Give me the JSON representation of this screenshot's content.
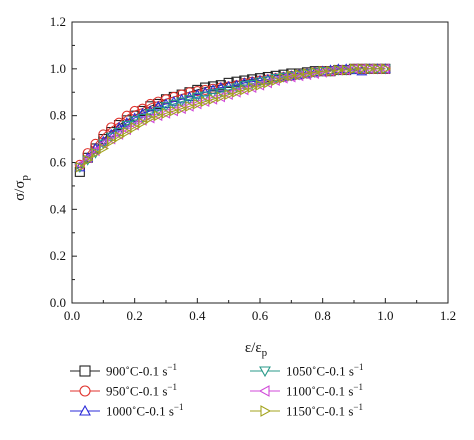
{
  "chart_data": {
    "type": "scatter",
    "title": "",
    "xlabel": "ε/ε",
    "xlabel_sub": "p",
    "ylabel": "σ/σ",
    "ylabel_sub": "p",
    "xlim": [
      0,
      1.2
    ],
    "ylim": [
      0,
      1.2
    ],
    "xticks": [
      "0.0",
      "0.2",
      "0.4",
      "0.6",
      "0.8",
      "1.0",
      "1.2"
    ],
    "yticks": [
      "0.0",
      "0.2",
      "0.4",
      "0.6",
      "0.8",
      "1.0",
      "1.2"
    ],
    "legend_position": "bottom, two columns",
    "series": [
      {
        "name": "900˚C-0.1 s",
        "unit_sup": "−1",
        "marker": "square",
        "color": "#222222",
        "x": [
          0.025,
          0.05,
          0.075,
          0.1,
          0.125,
          0.15,
          0.175,
          0.2,
          0.225,
          0.25,
          0.275,
          0.3,
          0.325,
          0.35,
          0.375,
          0.4,
          0.425,
          0.45,
          0.475,
          0.5,
          0.525,
          0.55,
          0.575,
          0.6,
          0.625,
          0.65,
          0.675,
          0.7,
          0.725,
          0.75,
          0.775,
          0.8,
          0.825,
          0.85,
          0.875,
          0.9,
          0.925,
          0.95,
          0.975,
          1.0
        ],
        "y": [
          0.56,
          0.62,
          0.66,
          0.7,
          0.73,
          0.76,
          0.78,
          0.8,
          0.82,
          0.84,
          0.85,
          0.87,
          0.88,
          0.89,
          0.9,
          0.91,
          0.92,
          0.925,
          0.93,
          0.94,
          0.945,
          0.95,
          0.955,
          0.96,
          0.965,
          0.97,
          0.975,
          0.98,
          0.98,
          0.985,
          0.99,
          0.99,
          0.99,
          0.995,
          0.995,
          1.0,
          1.0,
          1.0,
          1.0,
          1.0
        ]
      },
      {
        "name": "950˚C-0.1 s",
        "unit_sup": "−1",
        "marker": "circle",
        "color": "#e0322c",
        "x": [
          0.025,
          0.05,
          0.075,
          0.1,
          0.125,
          0.15,
          0.175,
          0.2,
          0.225,
          0.25,
          0.275,
          0.3,
          0.325,
          0.35,
          0.375,
          0.4,
          0.425,
          0.45,
          0.475,
          0.5,
          0.525,
          0.55,
          0.575,
          0.6,
          0.625,
          0.65,
          0.675,
          0.7,
          0.725,
          0.75,
          0.775,
          0.8,
          0.825,
          0.85,
          0.875,
          0.9,
          0.925,
          0.95,
          0.975,
          1.0
        ],
        "y": [
          0.59,
          0.64,
          0.68,
          0.72,
          0.75,
          0.77,
          0.8,
          0.82,
          0.83,
          0.85,
          0.86,
          0.87,
          0.88,
          0.89,
          0.9,
          0.905,
          0.91,
          0.915,
          0.92,
          0.925,
          0.93,
          0.94,
          0.945,
          0.95,
          0.955,
          0.96,
          0.965,
          0.97,
          0.975,
          0.98,
          0.985,
          0.99,
          0.99,
          0.995,
          0.995,
          1.0,
          1.0,
          1.0,
          1.0,
          1.0
        ]
      },
      {
        "name": "1000˚C-0.1 s",
        "unit_sup": "−1",
        "marker": "triangle-up",
        "color": "#2b2bd9",
        "x": [
          0.025,
          0.05,
          0.075,
          0.1,
          0.125,
          0.15,
          0.175,
          0.2,
          0.225,
          0.25,
          0.275,
          0.3,
          0.325,
          0.35,
          0.375,
          0.4,
          0.425,
          0.45,
          0.475,
          0.5,
          0.525,
          0.55,
          0.575,
          0.6,
          0.625,
          0.65,
          0.675,
          0.7,
          0.725,
          0.75,
          0.775,
          0.8,
          0.825,
          0.85,
          0.875,
          0.9,
          0.925,
          0.95,
          0.975,
          1.0
        ],
        "y": [
          0.58,
          0.62,
          0.66,
          0.69,
          0.72,
          0.75,
          0.77,
          0.79,
          0.81,
          0.82,
          0.84,
          0.85,
          0.86,
          0.87,
          0.88,
          0.89,
          0.9,
          0.91,
          0.92,
          0.925,
          0.93,
          0.94,
          0.945,
          0.95,
          0.955,
          0.96,
          0.965,
          0.97,
          0.975,
          0.98,
          0.985,
          0.99,
          0.995,
          1.0,
          1.0,
          0.995,
          0.99,
          1.0,
          1.0,
          1.0
        ]
      },
      {
        "name": "1050˚C-0.1 s",
        "unit_sup": "−1",
        "marker": "triangle-down",
        "color": "#2a9a8a",
        "x": [
          0.025,
          0.05,
          0.075,
          0.1,
          0.125,
          0.15,
          0.175,
          0.2,
          0.225,
          0.25,
          0.275,
          0.3,
          0.325,
          0.35,
          0.375,
          0.4,
          0.425,
          0.45,
          0.475,
          0.5,
          0.525,
          0.55,
          0.575,
          0.6,
          0.625,
          0.65,
          0.675,
          0.7,
          0.725,
          0.75,
          0.775,
          0.8,
          0.825,
          0.85,
          0.875,
          0.9,
          0.925,
          0.95,
          0.975,
          1.0
        ],
        "y": [
          0.58,
          0.61,
          0.64,
          0.68,
          0.71,
          0.73,
          0.76,
          0.78,
          0.79,
          0.81,
          0.82,
          0.84,
          0.85,
          0.86,
          0.87,
          0.88,
          0.885,
          0.895,
          0.9,
          0.91,
          0.92,
          0.93,
          0.935,
          0.945,
          0.95,
          0.96,
          0.965,
          0.97,
          0.975,
          0.98,
          0.985,
          0.99,
          0.99,
          0.995,
          0.995,
          1.0,
          1.0,
          1.0,
          1.0,
          1.0
        ]
      },
      {
        "name": "1100˚C-0.1 s",
        "unit_sup": "−1",
        "marker": "triangle-left",
        "color": "#d04ad8",
        "x": [
          0.025,
          0.05,
          0.075,
          0.1,
          0.125,
          0.15,
          0.175,
          0.2,
          0.225,
          0.25,
          0.275,
          0.3,
          0.325,
          0.35,
          0.375,
          0.4,
          0.425,
          0.45,
          0.475,
          0.5,
          0.525,
          0.55,
          0.575,
          0.6,
          0.625,
          0.65,
          0.675,
          0.7,
          0.725,
          0.75,
          0.775,
          0.8,
          0.825,
          0.85,
          0.875,
          0.9,
          0.925,
          0.95,
          0.975,
          1.0
        ],
        "y": [
          0.59,
          0.62,
          0.65,
          0.68,
          0.7,
          0.72,
          0.74,
          0.76,
          0.78,
          0.79,
          0.8,
          0.81,
          0.82,
          0.83,
          0.84,
          0.85,
          0.86,
          0.87,
          0.88,
          0.89,
          0.9,
          0.91,
          0.92,
          0.93,
          0.94,
          0.95,
          0.96,
          0.965,
          0.97,
          0.975,
          0.98,
          0.985,
          0.99,
          0.995,
          0.995,
          1.0,
          1.0,
          1.0,
          1.0,
          1.0
        ]
      },
      {
        "name": "1150˚C-0.1 s",
        "unit_sup": "−1",
        "marker": "triangle-right",
        "color": "#a3a31c",
        "x": [
          0.025,
          0.05,
          0.075,
          0.1,
          0.125,
          0.15,
          0.175,
          0.2,
          0.225,
          0.25,
          0.275,
          0.3,
          0.325,
          0.35,
          0.375,
          0.4,
          0.425,
          0.45,
          0.475,
          0.5,
          0.525,
          0.55,
          0.575,
          0.6,
          0.625,
          0.65,
          0.675,
          0.7,
          0.725,
          0.75,
          0.775,
          0.8,
          0.825,
          0.85,
          0.875,
          0.9,
          0.925,
          0.95,
          0.975,
          1.0
        ],
        "y": [
          0.58,
          0.61,
          0.64,
          0.66,
          0.69,
          0.71,
          0.73,
          0.75,
          0.77,
          0.79,
          0.8,
          0.81,
          0.82,
          0.83,
          0.84,
          0.85,
          0.86,
          0.87,
          0.88,
          0.89,
          0.9,
          0.91,
          0.92,
          0.93,
          0.94,
          0.95,
          0.96,
          0.97,
          0.975,
          0.98,
          0.985,
          0.99,
          0.99,
          0.995,
          0.995,
          1.0,
          1.0,
          1.0,
          1.0,
          1.0
        ]
      }
    ]
  }
}
